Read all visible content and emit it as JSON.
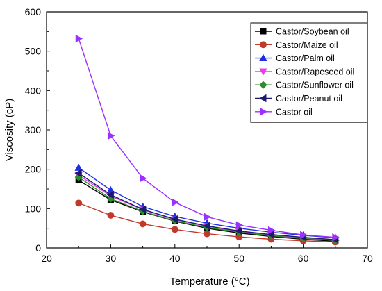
{
  "chart_data": {
    "type": "line",
    "xlabel": "Temperature (°C)",
    "ylabel": "Viscosity (cP)",
    "xlim": [
      20,
      70
    ],
    "ylim": [
      0,
      600
    ],
    "xticks": [
      20,
      30,
      40,
      50,
      60,
      70
    ],
    "yticks": [
      0,
      100,
      200,
      300,
      400,
      500,
      600
    ],
    "grid": false,
    "legend_position": "top-right",
    "x": [
      25,
      30,
      35,
      40,
      45,
      50,
      55,
      60,
      65
    ],
    "series": [
      {
        "name": "Castor/Soybean oil",
        "color": "#000000",
        "marker": "square",
        "values": [
          172,
          122,
          92,
          68,
          50,
          38,
          29,
          22,
          17
        ]
      },
      {
        "name": "Castor/Maize oil",
        "color": "#c0392b",
        "marker": "circle",
        "values": [
          114,
          83,
          61,
          47,
          36,
          28,
          22,
          18,
          15
        ]
      },
      {
        "name": "Castor/Palm oil",
        "color": "#1f2ee0",
        "marker": "triangle-up",
        "values": [
          204,
          147,
          105,
          80,
          63,
          50,
          40,
          32,
          26
        ]
      },
      {
        "name": "Castor/Rapeseed oil",
        "color": "#e83ee8",
        "marker": "triangle-down",
        "values": [
          185,
          132,
          97,
          72,
          55,
          42,
          33,
          26,
          20
        ]
      },
      {
        "name": "Castor/Sunflower oil",
        "color": "#2e8b2e",
        "marker": "diamond",
        "values": [
          180,
          125,
          93,
          69,
          52,
          40,
          31,
          24,
          19
        ]
      },
      {
        "name": "Castor/Peanut oil",
        "color": "#1a1a6e",
        "marker": "triangle-left",
        "values": [
          190,
          135,
          98,
          73,
          56,
          43,
          34,
          27,
          21
        ]
      },
      {
        "name": "Castor oil",
        "color": "#9b30ff",
        "marker": "triangle-right",
        "values": [
          532,
          285,
          177,
          116,
          79,
          58,
          45,
          33,
          27
        ]
      }
    ]
  }
}
